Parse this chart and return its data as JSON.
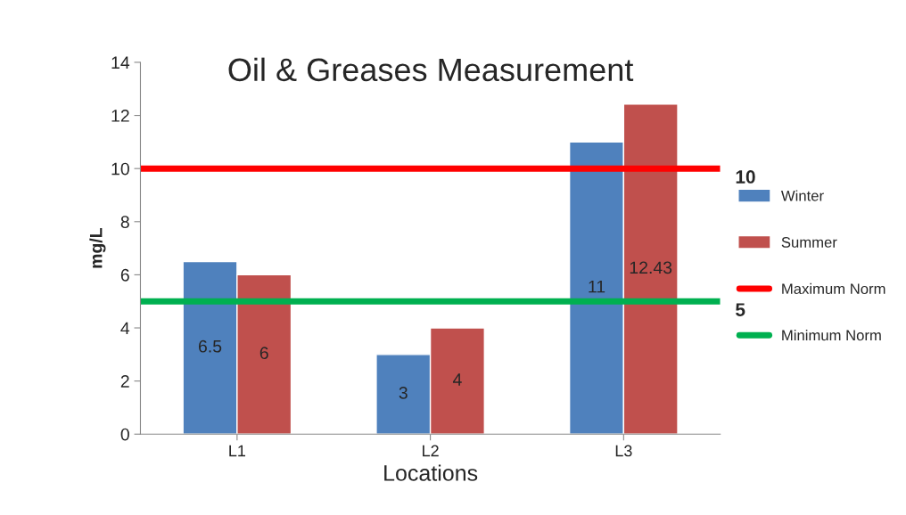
{
  "chart_data": {
    "type": "bar",
    "title": "Oil & Greases Measurement",
    "xlabel": "Locations",
    "ylabel": "mg/L",
    "categories": [
      "L1",
      "L2",
      "L3"
    ],
    "series": [
      {
        "name": "Winter",
        "color": "#4f81bd",
        "values": [
          6.5,
          3,
          11
        ]
      },
      {
        "name": "Summer",
        "color": "#c0504d",
        "values": [
          6,
          4,
          12.43
        ]
      }
    ],
    "ref_lines": [
      {
        "axis": "y",
        "value": 10,
        "label": "Maximum Norm",
        "color": "#ff0000",
        "line_style": "solid"
      },
      {
        "axis": "y",
        "value": 5,
        "label": "Minimum Norm",
        "color": "#00b050",
        "line_style": "solid"
      }
    ],
    "annotations": [
      "10",
      "5"
    ],
    "ylim": [
      0,
      14
    ],
    "yticks": [
      0,
      2,
      4,
      6,
      8,
      10,
      12,
      14
    ],
    "data_labels": true,
    "legend": "right",
    "grid": false
  }
}
